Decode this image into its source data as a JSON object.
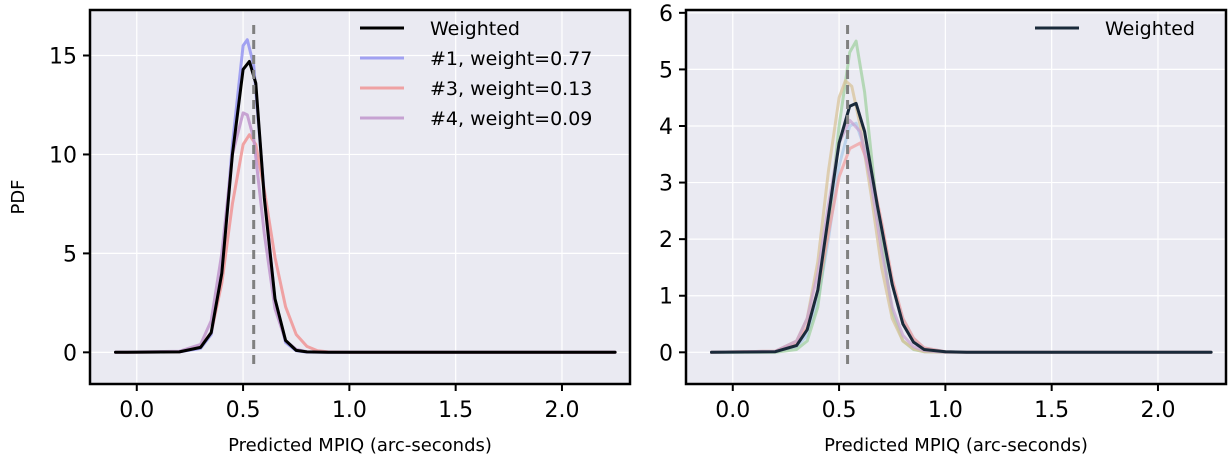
{
  "chart_data": [
    {
      "type": "line",
      "title": "",
      "xlabel": "Predicted MPIQ (arc-seconds)",
      "ylabel": "PDF",
      "xlim": [
        -0.22,
        2.32
      ],
      "ylim": [
        -1.6,
        17.3
      ],
      "xticks": [
        0.0,
        0.5,
        1.0,
        1.5,
        2.0
      ],
      "xtick_labels": [
        "0.0",
        "0.5",
        "1.0",
        "1.5",
        "2.0"
      ],
      "yticks": [
        0,
        5,
        10,
        15
      ],
      "ytick_labels": [
        "0",
        "5",
        "10",
        "15"
      ],
      "grid": true,
      "legend_position": "top-right",
      "reference_line_x": 0.55,
      "series": [
        {
          "name": "#1, weight=0.77",
          "color": "#8e8ef0",
          "opacity": 0.8,
          "width": 3,
          "x": [
            -0.1,
            0.2,
            0.3,
            0.35,
            0.4,
            0.45,
            0.5,
            0.52,
            0.55,
            0.6,
            0.65,
            0.7,
            0.75,
            0.8,
            0.9,
            1.0,
            2.25
          ],
          "y": [
            0,
            0.02,
            0.2,
            0.9,
            4.0,
            10.5,
            15.5,
            15.8,
            14.5,
            8.0,
            2.6,
            0.5,
            0.08,
            0.01,
            0,
            0,
            0
          ]
        },
        {
          "name": "#3, weight=0.13",
          "color": "#f08e8e",
          "opacity": 0.8,
          "width": 3,
          "x": [
            -0.1,
            0.2,
            0.3,
            0.35,
            0.4,
            0.45,
            0.5,
            0.53,
            0.56,
            0.6,
            0.65,
            0.7,
            0.75,
            0.8,
            0.85,
            0.9,
            1.0,
            2.25
          ],
          "y": [
            0,
            0.02,
            0.3,
            1.0,
            3.5,
            7.5,
            10.5,
            11.0,
            10.5,
            8.2,
            4.8,
            2.3,
            0.9,
            0.3,
            0.08,
            0.02,
            0,
            0
          ]
        },
        {
          "name": "#4, weight=0.09",
          "color": "#c095cc",
          "opacity": 0.85,
          "width": 3,
          "x": [
            -0.1,
            0.2,
            0.3,
            0.35,
            0.4,
            0.45,
            0.5,
            0.52,
            0.55,
            0.6,
            0.65,
            0.7,
            0.75,
            0.8,
            0.9,
            2.25
          ],
          "y": [
            0,
            0.05,
            0.4,
            1.6,
            5.0,
            10.0,
            12.1,
            12.0,
            10.8,
            6.0,
            2.2,
            0.6,
            0.15,
            0.03,
            0,
            0
          ]
        },
        {
          "name": "Weighted",
          "color": "#000000",
          "opacity": 1,
          "width": 3,
          "x": [
            -0.1,
            0.2,
            0.3,
            0.35,
            0.4,
            0.45,
            0.5,
            0.53,
            0.56,
            0.6,
            0.65,
            0.7,
            0.75,
            0.8,
            0.9,
            1.0,
            2.25
          ],
          "y": [
            0,
            0.02,
            0.25,
            1.0,
            4.0,
            10.0,
            14.3,
            14.7,
            13.6,
            7.8,
            2.7,
            0.6,
            0.1,
            0.02,
            0,
            0,
            0
          ]
        }
      ],
      "legend_order": [
        "Weighted",
        "#1, weight=0.77",
        "#3, weight=0.13",
        "#4, weight=0.09"
      ]
    },
    {
      "type": "line",
      "title": "",
      "xlabel": "Predicted MPIQ (arc-seconds)",
      "ylabel": "",
      "xlim": [
        -0.22,
        2.32
      ],
      "ylim": [
        -0.56,
        6.05
      ],
      "xticks": [
        0.0,
        0.5,
        1.0,
        1.5,
        2.0
      ],
      "xtick_labels": [
        "0.0",
        "0.5",
        "1.0",
        "1.5",
        "2.0"
      ],
      "yticks": [
        0,
        1,
        2,
        3,
        4,
        5,
        6
      ],
      "ytick_labels": [
        "0",
        "1",
        "2",
        "3",
        "4",
        "5",
        "6"
      ],
      "grid": true,
      "legend_position": "top-right",
      "reference_line_x": 0.54,
      "series": [
        {
          "name": "",
          "color": "#a8c8e8",
          "opacity": 0.7,
          "width": 3,
          "x": [
            -0.1,
            0.2,
            0.3,
            0.35,
            0.4,
            0.45,
            0.5,
            0.55,
            0.58,
            0.62,
            0.68,
            0.75,
            0.8,
            0.85,
            0.9,
            1.0,
            1.1,
            2.25
          ],
          "y": [
            0,
            0.01,
            0.1,
            0.3,
            0.9,
            2.0,
            3.3,
            4.0,
            4.05,
            3.6,
            2.5,
            1.2,
            0.6,
            0.25,
            0.08,
            0.01,
            0,
            0
          ]
        },
        {
          "name": "",
          "color": "#9ccf9c",
          "opacity": 0.7,
          "width": 3,
          "x": [
            -0.1,
            0.2,
            0.3,
            0.35,
            0.4,
            0.45,
            0.5,
            0.55,
            0.58,
            0.62,
            0.68,
            0.75,
            0.8,
            0.85,
            0.9,
            1.0,
            2.25
          ],
          "y": [
            0,
            0.0,
            0.05,
            0.2,
            0.8,
            2.2,
            4.0,
            5.3,
            5.5,
            4.6,
            2.5,
            0.7,
            0.2,
            0.05,
            0.01,
            0,
            0
          ]
        },
        {
          "name": "",
          "color": "#d8c39a",
          "opacity": 0.75,
          "width": 3,
          "x": [
            -0.1,
            0.2,
            0.3,
            0.35,
            0.4,
            0.45,
            0.5,
            0.53,
            0.56,
            0.6,
            0.65,
            0.7,
            0.75,
            0.8,
            0.85,
            0.9,
            1.0,
            2.25
          ],
          "y": [
            0,
            0.02,
            0.2,
            0.6,
            1.6,
            3.2,
            4.5,
            4.8,
            4.7,
            4.0,
            2.8,
            1.5,
            0.6,
            0.2,
            0.06,
            0.01,
            0,
            0
          ]
        },
        {
          "name": "",
          "color": "#f0a0a0",
          "opacity": 0.75,
          "width": 3,
          "x": [
            -0.1,
            0.2,
            0.3,
            0.35,
            0.4,
            0.45,
            0.5,
            0.55,
            0.6,
            0.65,
            0.7,
            0.75,
            0.8,
            0.85,
            0.9,
            1.0,
            1.1,
            2.25
          ],
          "y": [
            0,
            0.02,
            0.15,
            0.45,
            1.1,
            2.1,
            3.1,
            3.6,
            3.7,
            3.2,
            2.3,
            1.3,
            0.6,
            0.25,
            0.08,
            0.01,
            0,
            0
          ]
        },
        {
          "name": "",
          "color": "#c8a0d0",
          "opacity": 0.7,
          "width": 3,
          "x": [
            -0.1,
            0.2,
            0.3,
            0.35,
            0.4,
            0.45,
            0.5,
            0.55,
            0.6,
            0.65,
            0.7,
            0.75,
            0.8,
            0.85,
            0.9,
            1.0,
            2.25
          ],
          "y": [
            0,
            0.02,
            0.2,
            0.6,
            1.4,
            2.6,
            3.7,
            4.1,
            3.9,
            3.0,
            1.8,
            0.8,
            0.3,
            0.1,
            0.03,
            0,
            0
          ]
        },
        {
          "name": "Weighted",
          "color": "#1a2a3a",
          "opacity": 1,
          "width": 3,
          "x": [
            -0.1,
            0.2,
            0.3,
            0.35,
            0.4,
            0.45,
            0.5,
            0.55,
            0.58,
            0.62,
            0.68,
            0.75,
            0.8,
            0.85,
            0.9,
            1.0,
            1.1,
            2.25
          ],
          "y": [
            0,
            0.01,
            0.12,
            0.4,
            1.1,
            2.4,
            3.7,
            4.35,
            4.4,
            3.9,
            2.6,
            1.2,
            0.5,
            0.18,
            0.05,
            0.01,
            0,
            0
          ]
        }
      ],
      "legend_order": [
        "Weighted"
      ]
    }
  ]
}
